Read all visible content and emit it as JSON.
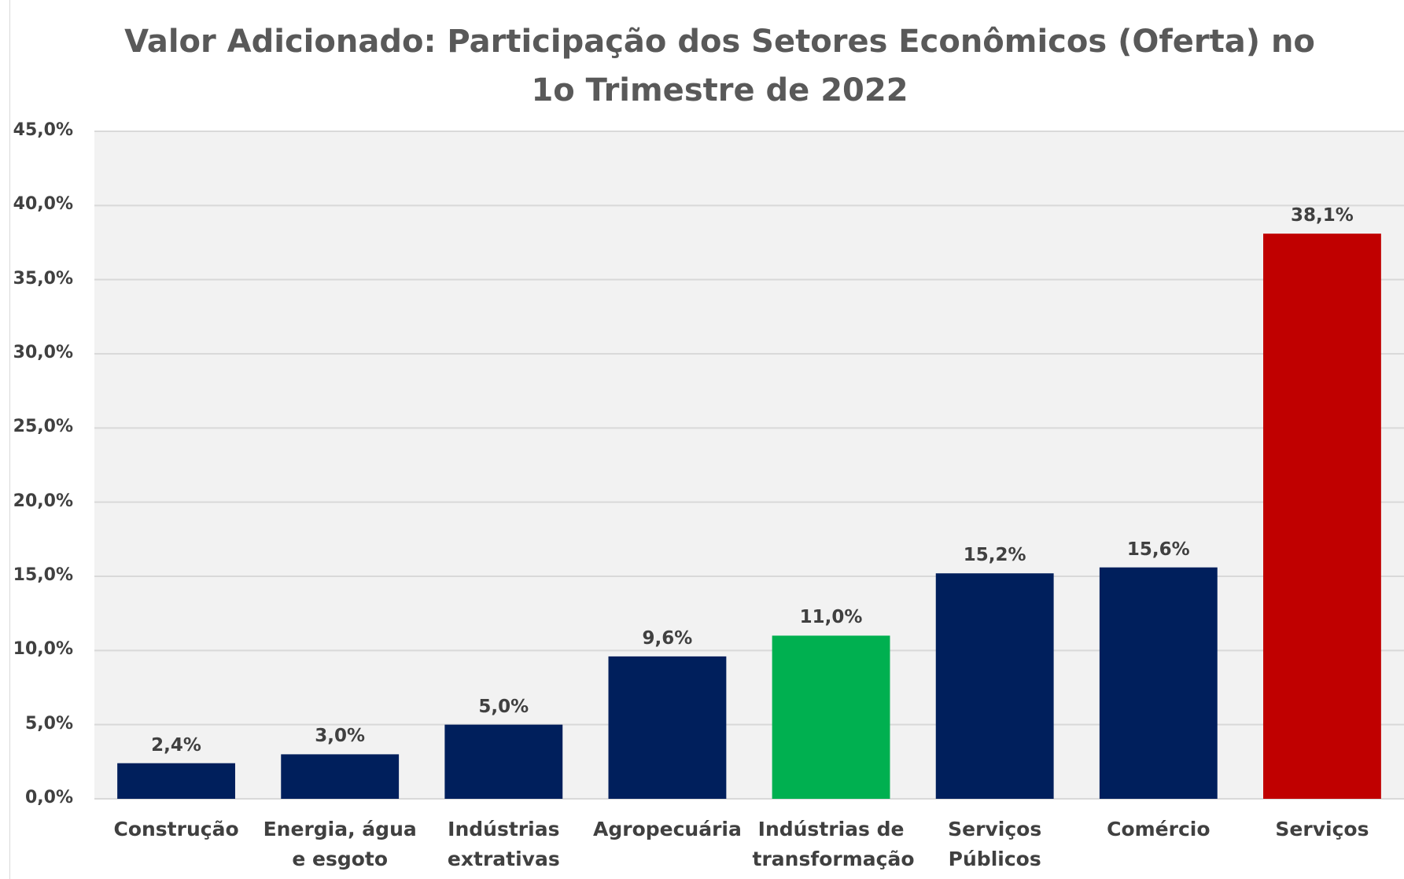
{
  "chart_data": {
    "type": "bar",
    "title": "Valor Adicionado: Participação dos Setores Econômicos (Oferta) no 1o Trimestre de 2022",
    "categories": [
      "Construção",
      "Energia, água e esgoto",
      "Indústrias extrativas",
      "Agropecuária",
      "Indústrias de transformação",
      "Serviços Públicos",
      "Comércio",
      "Serviços"
    ],
    "values": [
      2.4,
      3.0,
      5.0,
      9.6,
      11.0,
      15.2,
      15.6,
      38.1
    ],
    "value_labels": [
      "2,4%",
      "3,0%",
      "5,0%",
      "9,6%",
      "11,0%",
      "15,2%",
      "15,6%",
      "38,1%"
    ],
    "colors": [
      "#001f5c",
      "#001f5c",
      "#001f5c",
      "#001f5c",
      "#00b050",
      "#001f5c",
      "#001f5c",
      "#c00000"
    ],
    "ylim": [
      0,
      45
    ],
    "yticks": [
      {
        "value": 0,
        "label": "0,0%"
      },
      {
        "value": 5,
        "label": "5,0%"
      },
      {
        "value": 10,
        "label": "10,0%"
      },
      {
        "value": 15,
        "label": "15,0%"
      },
      {
        "value": 20,
        "label": "20,0%"
      },
      {
        "value": 25,
        "label": "25,0%"
      },
      {
        "value": 30,
        "label": "30,0%"
      },
      {
        "value": 35,
        "label": "35,0%"
      },
      {
        "value": 40,
        "label": "40,0%"
      },
      {
        "value": 45,
        "label": "45,0%"
      }
    ],
    "grid": true
  }
}
